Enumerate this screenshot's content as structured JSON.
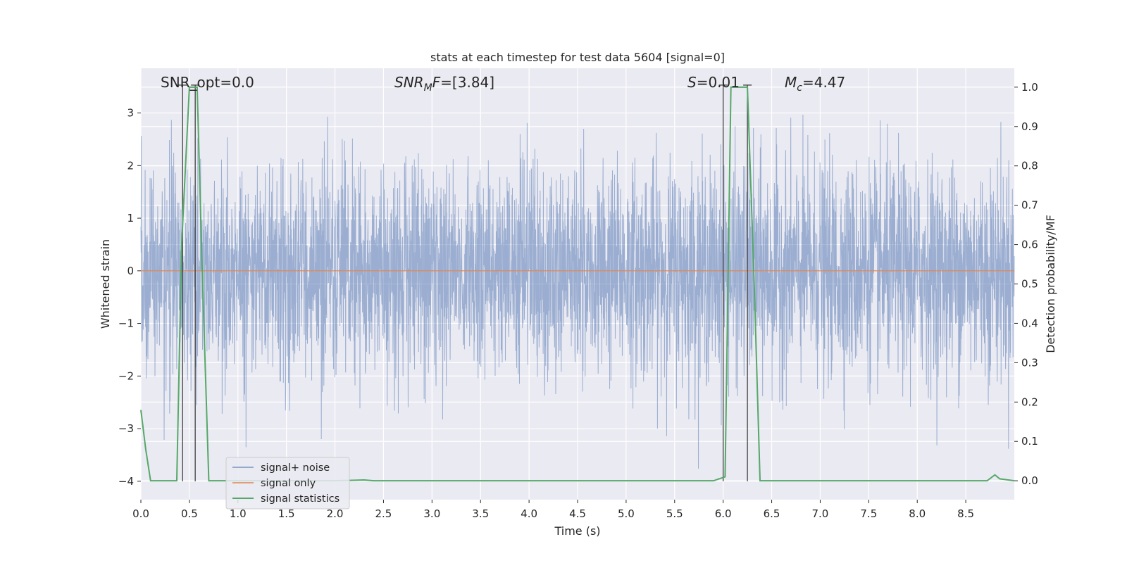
{
  "chart_data": {
    "type": "line",
    "title": "stats at each timestep for test data 5604 [signal=0]",
    "xlabel": "Time (s)",
    "ylabel": "Whitened strain",
    "y2label": "Detection probability/MF",
    "xlim": [
      0.0,
      9.0
    ],
    "ylim": [
      -4.35,
      3.85
    ],
    "y2lim": [
      -0.048,
      1.048
    ],
    "xticks": [
      "0.0",
      "0.5",
      "1.0",
      "1.5",
      "2.0",
      "2.5",
      "3.0",
      "3.5",
      "4.0",
      "4.5",
      "5.0",
      "5.5",
      "6.0",
      "6.5",
      "7.0",
      "7.5",
      "8.0",
      "8.5"
    ],
    "yticks": [
      "3",
      "2",
      "1",
      "0",
      "−1",
      "−2",
      "−3",
      "−4"
    ],
    "y2ticks": [
      "1.0",
      "0.9",
      "0.8",
      "0.7",
      "0.6",
      "0.5",
      "0.4",
      "0.3",
      "0.2",
      "0.1",
      "0.0"
    ],
    "grid": true,
    "legend_position": "lower-left",
    "annotations": {
      "snr_opt": "SNR_opt=0.0",
      "snr_mf": {
        "italic": "SNR",
        "sub": "M",
        "italic2": "F",
        "rest": "=[3.84]"
      },
      "stat": {
        "italic": "S",
        "rest": "=0.01"
      },
      "mc": {
        "italic": "M",
        "sub": "c",
        "rest": "=4.47"
      }
    },
    "series": [
      {
        "name": "signal+ noise",
        "color": "#4c72b0",
        "noise_sigma": 1.0,
        "x_range": [
          0.0,
          9.0
        ]
      },
      {
        "name": "signal only",
        "color": "#dd8452",
        "x": [
          0.0,
          9.0
        ],
        "y": [
          0.0,
          0.0
        ]
      },
      {
        "name": "signal statistics",
        "color": "#55a868",
        "axis": "right",
        "x": [
          0.0,
          0.05,
          0.1,
          0.3,
          0.37,
          0.42,
          0.5,
          0.58,
          0.63,
          0.7,
          2.0,
          2.3,
          2.4,
          5.9,
          6.02,
          6.08,
          6.25,
          6.32,
          6.38,
          8.6,
          8.72,
          8.8,
          8.85,
          9.0
        ],
        "y": [
          0.18,
          0.08,
          0.0,
          0.0,
          0.0,
          0.6,
          1.0,
          1.0,
          0.55,
          0.0,
          0.0,
          0.002,
          0.0,
          0.0,
          0.01,
          1.0,
          1.0,
          0.5,
          0.0,
          0.0,
          0.0,
          0.015,
          0.005,
          0.0
        ]
      }
    ],
    "markers": [
      {
        "x": 0.43,
        "axis": "left",
        "y_from": -4.0,
        "y_to": 3.53
      },
      {
        "x": 0.56,
        "axis": "left",
        "y_from": -4.0,
        "y_to": 3.53
      },
      {
        "x": 6.0,
        "axis": "left",
        "y_from": -4.0,
        "y_to": 3.53
      },
      {
        "x": 6.25,
        "axis": "left",
        "y_from": -4.0,
        "y_to": 3.53
      }
    ],
    "marker_color": "#404040",
    "face_color": "#eaeaf2",
    "grid_color": "#ffffff"
  }
}
